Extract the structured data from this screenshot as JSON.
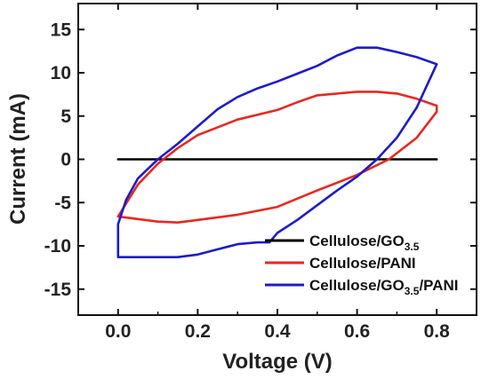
{
  "chart_data": {
    "type": "line",
    "title": "",
    "xlabel": "Voltage (V)",
    "ylabel": "Current (mA)",
    "xlim": [
      -0.1,
      0.9
    ],
    "ylim": [
      -18,
      18
    ],
    "xticks": [
      "0.0",
      "0.2",
      "0.4",
      "0.6",
      "0.8"
    ],
    "xtick_values": [
      0.0,
      0.2,
      0.4,
      0.6,
      0.8
    ],
    "yticks": [
      "-15",
      "-10",
      "-5",
      "0",
      "5",
      "10",
      "15"
    ],
    "ytick_values": [
      -15,
      -10,
      -5,
      0,
      5,
      10,
      15
    ],
    "legend_position": "lower-right",
    "series": [
      {
        "name": "Cellulose/GO3.5",
        "legend_main": "Cellulose/GO",
        "legend_sub": "3.5",
        "legend_tail": "",
        "color": "#000000",
        "x": [
          0.0,
          0.8
        ],
        "y": [
          0.0,
          0.0
        ]
      },
      {
        "name": "Cellulose/PANI",
        "legend_main": "Cellulose/PANI",
        "legend_sub": "",
        "legend_tail": "",
        "color": "#e8281e",
        "x": [
          0.0,
          0.05,
          0.1,
          0.15,
          0.2,
          0.3,
          0.4,
          0.5,
          0.6,
          0.68,
          0.75,
          0.8,
          0.8,
          0.75,
          0.7,
          0.65,
          0.6,
          0.5,
          0.45,
          0.4,
          0.3,
          0.2,
          0.15,
          0.1,
          0.05,
          0.0
        ],
        "y": [
          -6.6,
          -6.9,
          -7.2,
          -7.3,
          -7.0,
          -6.4,
          -5.5,
          -3.6,
          -1.8,
          0.0,
          2.5,
          5.5,
          6.2,
          7.0,
          7.6,
          7.8,
          7.8,
          7.4,
          6.6,
          5.7,
          4.6,
          2.8,
          1.3,
          -0.5,
          -2.9,
          -6.6
        ]
      },
      {
        "name": "Cellulose/GO3.5/PANI",
        "legend_main": "Cellulose/GO",
        "legend_sub": "3.5",
        "legend_tail": "/PANI",
        "color": "#1c1ccc",
        "x": [
          0.0,
          0.05,
          0.1,
          0.15,
          0.2,
          0.25,
          0.3,
          0.35,
          0.38,
          0.4,
          0.45,
          0.5,
          0.55,
          0.6,
          0.65,
          0.7,
          0.75,
          0.78,
          0.8,
          0.8,
          0.75,
          0.7,
          0.65,
          0.62,
          0.6,
          0.55,
          0.5,
          0.45,
          0.4,
          0.35,
          0.3,
          0.25,
          0.2,
          0.15,
          0.1,
          0.05,
          0.02,
          0.0,
          0.0
        ],
        "y": [
          -11.3,
          -11.3,
          -11.3,
          -11.3,
          -11.0,
          -10.4,
          -9.8,
          -9.6,
          -9.6,
          -8.5,
          -7.0,
          -5.3,
          -3.6,
          -2.0,
          0.0,
          2.5,
          6.0,
          9.0,
          11.0,
          11.0,
          11.8,
          12.4,
          12.9,
          12.9,
          12.9,
          12.0,
          10.8,
          9.9,
          9.0,
          8.2,
          7.2,
          5.8,
          3.8,
          1.8,
          0.0,
          -2.2,
          -4.7,
          -7.5,
          -11.3
        ]
      }
    ]
  }
}
